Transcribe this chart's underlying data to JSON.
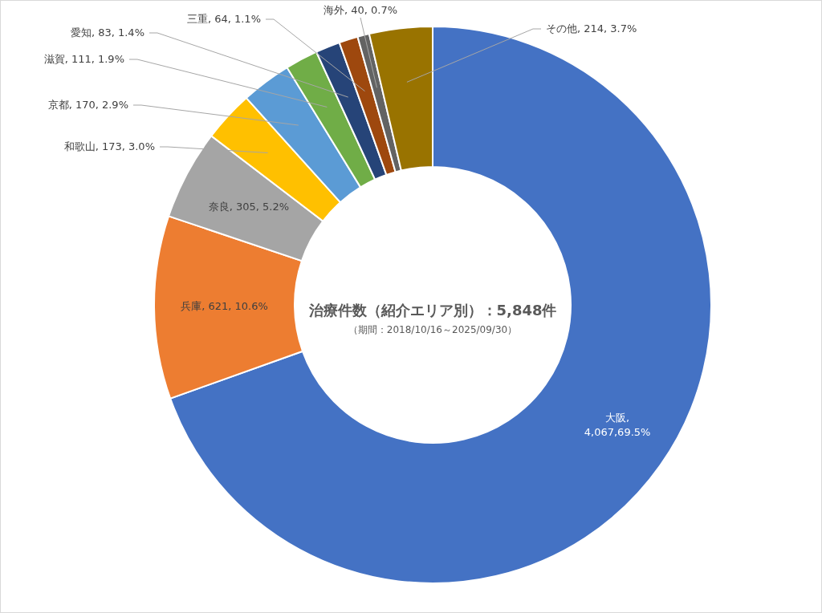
{
  "chart_data": {
    "type": "donut",
    "title": "治療件数（紹介エリア別）：5,848件",
    "subtitle": "（期間：2018/10/16～2025/09/30）",
    "categories": [
      "大阪",
      "兵庫",
      "奈良",
      "和歌山",
      "京都",
      "滋賀",
      "愛知",
      "三重",
      "海外",
      "その他"
    ],
    "values": [
      4067,
      621,
      305,
      173,
      170,
      111,
      83,
      64,
      40,
      214
    ],
    "value_labels": [
      ",\n4,067,69.5%",
      ", 621, 10.6%",
      ", 305, 5.2%",
      ", 173, 3.0%",
      ", 170, 2.9%",
      ", 111, 1.9%",
      ", 83, 1.4%",
      ", 64, 1.1%",
      ", 40, 0.7%",
      ", 214, 3.7%"
    ],
    "colors": [
      "#4472c4",
      "#ed7d31",
      "#a5a5a5",
      "#ffc000",
      "#5b9bd5",
      "#70ad47",
      "#264478",
      "#9e480e",
      "#636363",
      "#997300"
    ]
  }
}
